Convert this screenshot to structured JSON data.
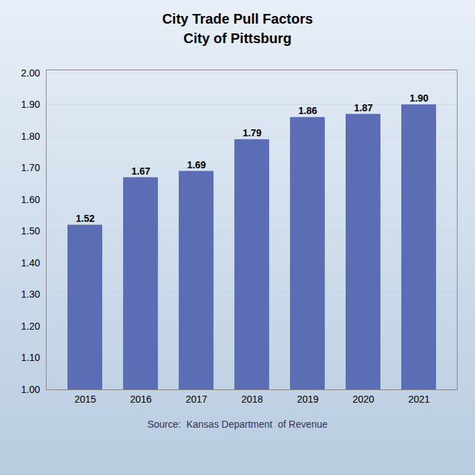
{
  "chart_data": {
    "type": "bar",
    "title": "City Trade Pull Factors",
    "subtitle": "City of Pittsburg",
    "caption": "Source:  Kansas Department  of Revenue",
    "categories": [
      "2015",
      "2016",
      "2017",
      "2018",
      "2019",
      "2020",
      "2021"
    ],
    "values": [
      1.52,
      1.67,
      1.69,
      1.79,
      1.86,
      1.87,
      1.9
    ],
    "value_labels": [
      "1.52",
      "1.67",
      "1.69",
      "1.79",
      "1.86",
      "1.87",
      "1.90"
    ],
    "data_labels": true,
    "color": "#5b6db5",
    "ylim": [
      1.0,
      2.01
    ],
    "yticks": [
      {
        "value": 1.0,
        "label": "1.00"
      },
      {
        "value": 1.1,
        "label": "1.10"
      },
      {
        "value": 1.2,
        "label": "1.20"
      },
      {
        "value": 1.3,
        "label": "1.30"
      },
      {
        "value": 1.4,
        "label": "1.40"
      },
      {
        "value": 1.5,
        "label": "1.50"
      },
      {
        "value": 1.6,
        "label": "1.60"
      },
      {
        "value": 1.7,
        "label": "1.70"
      },
      {
        "value": 1.8,
        "label": "1.80"
      },
      {
        "value": 1.9,
        "label": "1.90"
      },
      {
        "value": 2.0,
        "label": "2.00"
      }
    ],
    "grid": true
  }
}
